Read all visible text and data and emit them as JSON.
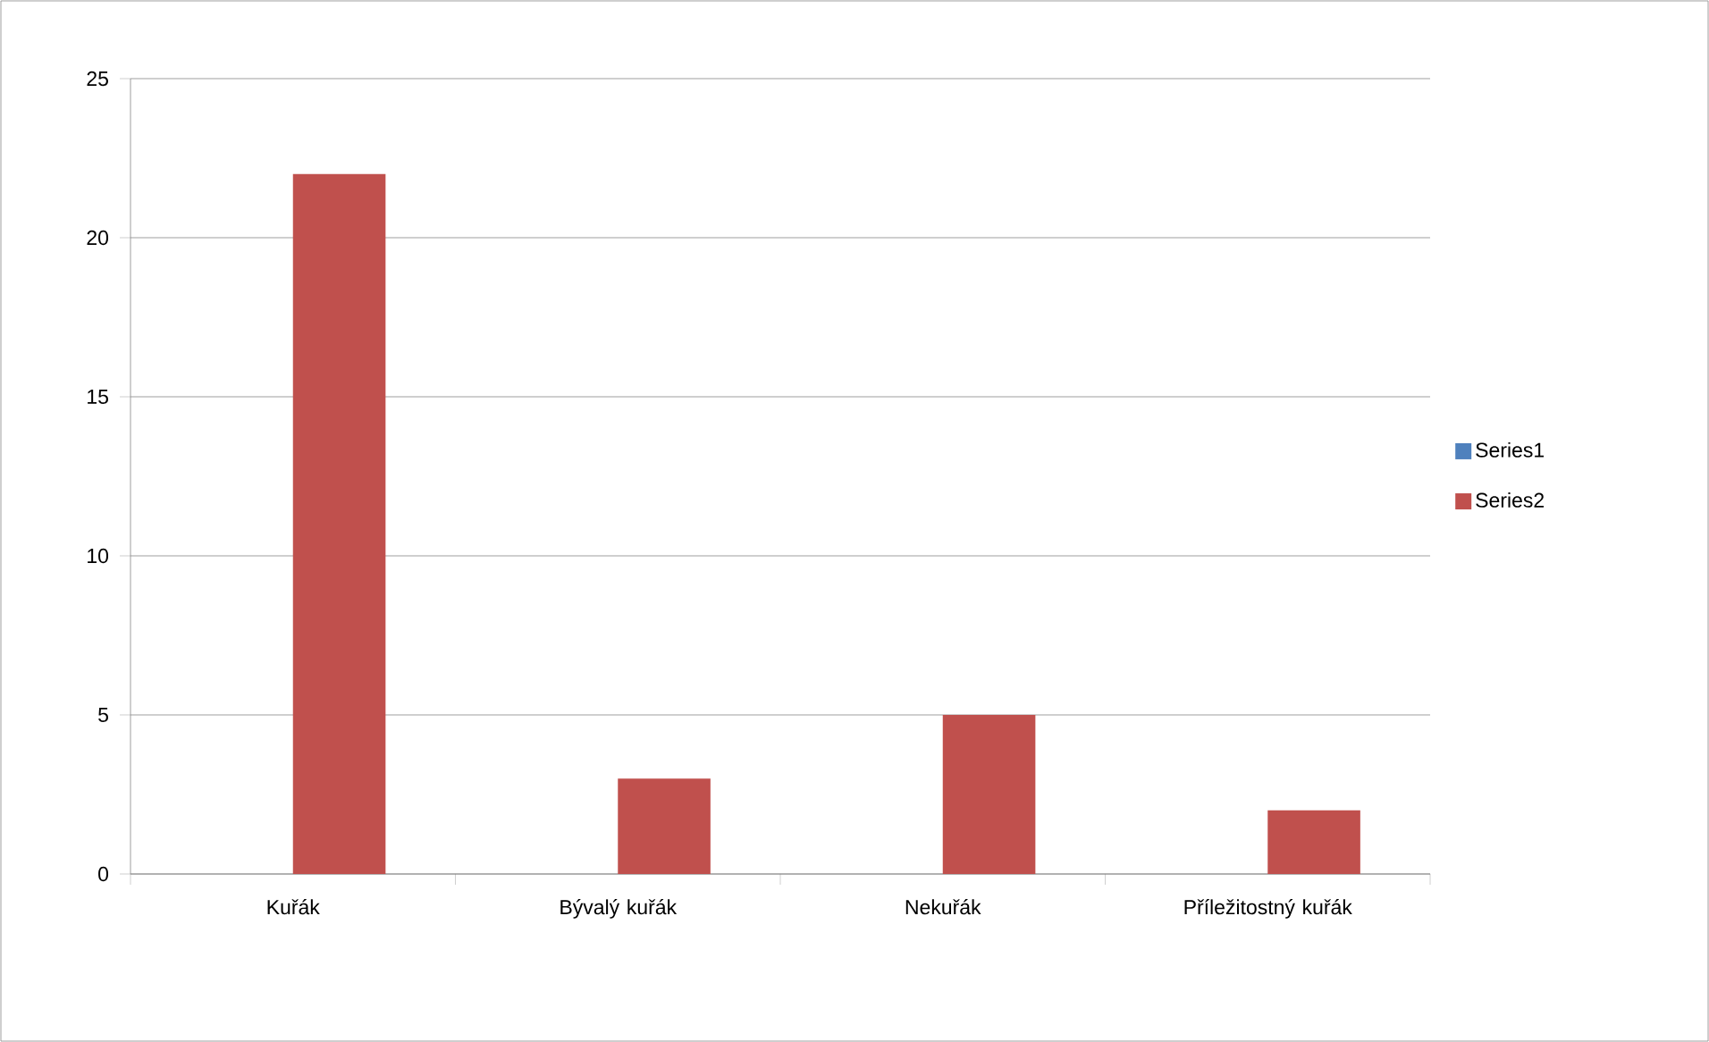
{
  "chart_data": {
    "type": "bar",
    "categories": [
      "Kuřák",
      "Bývalý kuřák",
      "Nekuřák",
      "Příležitostný kuřák"
    ],
    "series": [
      {
        "name": "Series1",
        "color": "#4f81bd",
        "values": [
          null,
          null,
          null,
          null
        ]
      },
      {
        "name": "Series2",
        "color": "#c0504d",
        "values": [
          22,
          3,
          5,
          2
        ]
      }
    ],
    "ylim": [
      0,
      25
    ],
    "yticks": [
      0,
      5,
      10,
      15,
      20,
      25
    ],
    "grid": "y",
    "legend": "right"
  }
}
